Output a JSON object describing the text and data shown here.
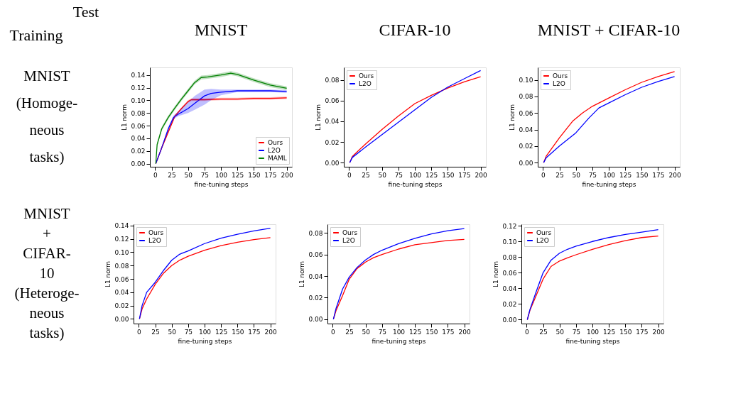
{
  "chart_data": [
    {
      "type": "line",
      "title": "MNIST",
      "xlabel": "fine-tuning steps",
      "ylabel": "L1 norm",
      "annotations": [
        "Test",
        "Training",
        "MNIST",
        "(Homoge-",
        "neous",
        "tasks)"
      ],
      "xlim": [
        -8,
        208
      ],
      "xticks": [
        0,
        25,
        50,
        75,
        100,
        125,
        150,
        175,
        200
      ],
      "ylim": [
        -0.005,
        0.152
      ],
      "yticks": [
        {
          "value": 0,
          "label": "0.00"
        },
        {
          "value": 0.02,
          "label": "0.02"
        },
        {
          "value": 0.04,
          "label": "0.04"
        },
        {
          "value": 0.06,
          "label": "0.06"
        },
        {
          "value": 0.08,
          "label": "0.08"
        },
        {
          "value": 0.1,
          "label": "0.10"
        },
        {
          "value": 0.12,
          "label": "0.12"
        },
        {
          "value": 0.14,
          "label": "0.14"
        }
      ],
      "legend": "bottom right",
      "grid": false,
      "series": [
        {
          "name": "Ours",
          "color": "#ff0000",
          "x": [
            1,
            10,
            20,
            30,
            40,
            50,
            55,
            75,
            100,
            125,
            150,
            175,
            200
          ],
          "values": [
            0,
            0.025,
            0.05,
            0.075,
            0.087,
            0.098,
            0.101,
            0.101,
            0.102,
            0.102,
            0.103,
            0.103,
            0.104
          ],
          "lower": [
            0,
            0.023,
            0.048,
            0.073,
            0.085,
            0.096,
            0.099,
            0.099,
            0.1,
            0.1,
            0.101,
            0.101,
            0.102
          ],
          "upper": [
            0,
            0.027,
            0.052,
            0.077,
            0.089,
            0.1,
            0.103,
            0.103,
            0.104,
            0.104,
            0.105,
            0.105,
            0.106
          ]
        },
        {
          "name": "L2O",
          "color": "#0000ff",
          "x": [
            1,
            10,
            20,
            28,
            35,
            50,
            60,
            75,
            85,
            100,
            125,
            150,
            175,
            200
          ],
          "values": [
            0,
            0.025,
            0.055,
            0.073,
            0.078,
            0.087,
            0.095,
            0.107,
            0.111,
            0.113,
            0.115,
            0.115,
            0.115,
            0.114
          ],
          "lower": [
            0,
            0.023,
            0.052,
            0.07,
            0.075,
            0.08,
            0.085,
            0.093,
            0.1,
            0.108,
            0.113,
            0.113,
            0.113,
            0.112
          ],
          "upper": [
            0,
            0.027,
            0.058,
            0.076,
            0.082,
            0.097,
            0.107,
            0.117,
            0.118,
            0.117,
            0.117,
            0.117,
            0.117,
            0.116
          ]
        },
        {
          "name": "MAML",
          "color": "#008000",
          "x": [
            1,
            3,
            10,
            20,
            30,
            40,
            50,
            60,
            70,
            80,
            100,
            115,
            125,
            150,
            175,
            200
          ],
          "values": [
            0,
            0.03,
            0.055,
            0.073,
            0.088,
            0.102,
            0.115,
            0.128,
            0.136,
            0.137,
            0.14,
            0.143,
            0.141,
            0.132,
            0.124,
            0.119
          ],
          "lower": [
            0,
            0.027,
            0.052,
            0.07,
            0.085,
            0.099,
            0.112,
            0.125,
            0.133,
            0.134,
            0.137,
            0.14,
            0.138,
            0.129,
            0.121,
            0.116
          ],
          "upper": [
            0,
            0.033,
            0.058,
            0.076,
            0.091,
            0.105,
            0.118,
            0.131,
            0.139,
            0.14,
            0.143,
            0.146,
            0.144,
            0.135,
            0.127,
            0.122
          ]
        }
      ]
    },
    {
      "type": "line",
      "title": "CIFAR-10",
      "xlabel": "fine-tuning steps",
      "ylabel": "L1 norm",
      "xlim": [
        -8,
        208
      ],
      "xticks": [
        0,
        25,
        50,
        75,
        100,
        125,
        150,
        175,
        200
      ],
      "ylim": [
        -0.004,
        0.092
      ],
      "yticks": [
        {
          "value": 0,
          "label": "0.00"
        },
        {
          "value": 0.02,
          "label": "0.02"
        },
        {
          "value": 0.04,
          "label": "0.04"
        },
        {
          "value": 0.06,
          "label": "0.06"
        },
        {
          "value": 0.08,
          "label": "0.08"
        }
      ],
      "legend": "top left",
      "grid": false,
      "x": [
        1,
        5,
        25,
        50,
        75,
        100,
        125,
        150,
        175,
        200
      ],
      "series": [
        {
          "name": "Ours",
          "color": "#ff0000",
          "values": [
            0,
            0.006,
            0.018,
            0.032,
            0.045,
            0.057,
            0.065,
            0.072,
            0.078,
            0.083
          ]
        },
        {
          "name": "L2O",
          "color": "#0000ff",
          "values": [
            0,
            0.005,
            0.015,
            0.027,
            0.039,
            0.051,
            0.063,
            0.073,
            0.081,
            0.089
          ]
        }
      ]
    },
    {
      "type": "line",
      "title": "MNIST + CIFAR-10",
      "xlabel": "fine-tuning steps",
      "ylabel": "L1 norm",
      "xlim": [
        -8,
        208
      ],
      "xticks": [
        0,
        25,
        50,
        75,
        100,
        125,
        150,
        175,
        200
      ],
      "ylim": [
        -0.005,
        0.115
      ],
      "yticks": [
        {
          "value": 0,
          "label": "0.00"
        },
        {
          "value": 0.02,
          "label": "0.02"
        },
        {
          "value": 0.04,
          "label": "0.04"
        },
        {
          "value": 0.06,
          "label": "0.06"
        },
        {
          "value": 0.08,
          "label": "0.08"
        },
        {
          "value": 0.1,
          "label": "0.10"
        }
      ],
      "legend": "top left",
      "grid": false,
      "series": [
        {
          "name": "Ours",
          "color": "#ff0000",
          "x": [
            1,
            5,
            25,
            45,
            60,
            75,
            100,
            125,
            150,
            175,
            200
          ],
          "values": [
            0,
            0.008,
            0.03,
            0.05,
            0.06,
            0.068,
            0.078,
            0.088,
            0.097,
            0.104,
            0.11
          ]
        },
        {
          "name": "L2O",
          "color": "#0000ff",
          "x": [
            1,
            5,
            25,
            50,
            70,
            85,
            100,
            125,
            150,
            175,
            200
          ],
          "values": [
            0,
            0.006,
            0.02,
            0.036,
            0.054,
            0.066,
            0.072,
            0.082,
            0.091,
            0.098,
            0.104
          ]
        }
      ]
    },
    {
      "type": "line",
      "xlabel": "fine-tuning steps",
      "ylabel": "L1 norm",
      "annotations": [
        "MNIST",
        "+",
        "CIFAR-",
        "10",
        "(Heteroge-",
        "neous",
        "tasks)"
      ],
      "xlim": [
        -8,
        208
      ],
      "xticks": [
        0,
        25,
        50,
        75,
        100,
        125,
        150,
        175,
        200
      ],
      "ylim": [
        -0.007,
        0.142
      ],
      "yticks": [
        {
          "value": 0,
          "label": "0.00"
        },
        {
          "value": 0.02,
          "label": "0.02"
        },
        {
          "value": 0.04,
          "label": "0.04"
        },
        {
          "value": 0.06,
          "label": "0.06"
        },
        {
          "value": 0.08,
          "label": "0.08"
        },
        {
          "value": 0.1,
          "label": "0.10"
        },
        {
          "value": 0.12,
          "label": "0.12"
        },
        {
          "value": 0.14,
          "label": "0.14"
        }
      ],
      "legend": "top left",
      "grid": false,
      "x": [
        1,
        5,
        12,
        25,
        37,
        50,
        62,
        75,
        100,
        125,
        150,
        175,
        200
      ],
      "series": [
        {
          "name": "Ours",
          "color": "#ff0000",
          "values": [
            0,
            0.015,
            0.03,
            0.052,
            0.068,
            0.08,
            0.088,
            0.094,
            0.103,
            0.11,
            0.115,
            0.119,
            0.122
          ]
        },
        {
          "name": "L2O",
          "color": "#0000ff",
          "values": [
            0,
            0.02,
            0.04,
            0.055,
            0.072,
            0.088,
            0.097,
            0.102,
            0.113,
            0.121,
            0.127,
            0.132,
            0.136
          ]
        }
      ]
    },
    {
      "type": "line",
      "xlabel": "fine-tuning steps",
      "ylabel": "L1 norm",
      "xlim": [
        -8,
        208
      ],
      "xticks": [
        0,
        25,
        50,
        75,
        100,
        125,
        150,
        175,
        200
      ],
      "ylim": [
        -0.004,
        0.088
      ],
      "yticks": [
        {
          "value": 0,
          "label": "0.00"
        },
        {
          "value": 0.02,
          "label": "0.02"
        },
        {
          "value": 0.04,
          "label": "0.04"
        },
        {
          "value": 0.06,
          "label": "0.06"
        },
        {
          "value": 0.08,
          "label": "0.08"
        }
      ],
      "legend": "top left",
      "grid": false,
      "x": [
        1,
        5,
        15,
        25,
        37,
        50,
        62,
        75,
        100,
        125,
        150,
        175,
        200
      ],
      "series": [
        {
          "name": "Ours",
          "color": "#ff0000",
          "values": [
            0,
            0.008,
            0.022,
            0.037,
            0.047,
            0.053,
            0.057,
            0.06,
            0.065,
            0.069,
            0.071,
            0.073,
            0.074
          ]
        },
        {
          "name": "L2O",
          "color": "#0000ff",
          "values": [
            0,
            0.01,
            0.028,
            0.039,
            0.048,
            0.055,
            0.06,
            0.064,
            0.07,
            0.075,
            0.079,
            0.082,
            0.084
          ]
        }
      ]
    },
    {
      "type": "line",
      "xlabel": "fine-tuning steps",
      "ylabel": "L1 norm",
      "xlim": [
        -8,
        208
      ],
      "xticks": [
        0,
        25,
        50,
        75,
        100,
        125,
        150,
        175,
        200
      ],
      "ylim": [
        -0.005,
        0.122
      ],
      "yticks": [
        {
          "value": 0,
          "label": "0.00"
        },
        {
          "value": 0.02,
          "label": "0.02"
        },
        {
          "value": 0.04,
          "label": "0.04"
        },
        {
          "value": 0.06,
          "label": "0.06"
        },
        {
          "value": 0.08,
          "label": "0.08"
        },
        {
          "value": 0.1,
          "label": "0.10"
        },
        {
          "value": 0.12,
          "label": "0.12"
        }
      ],
      "legend": "top left",
      "grid": false,
      "x": [
        1,
        5,
        15,
        25,
        37,
        50,
        62,
        75,
        100,
        125,
        150,
        175,
        200
      ],
      "series": [
        {
          "name": "Ours",
          "color": "#ff0000",
          "values": [
            0,
            0.012,
            0.032,
            0.052,
            0.068,
            0.075,
            0.079,
            0.083,
            0.09,
            0.096,
            0.101,
            0.105,
            0.107
          ]
        },
        {
          "name": "L2O",
          "color": "#0000ff",
          "values": [
            0,
            0.013,
            0.037,
            0.06,
            0.076,
            0.085,
            0.09,
            0.094,
            0.1,
            0.105,
            0.109,
            0.112,
            0.115
          ]
        }
      ]
    }
  ]
}
